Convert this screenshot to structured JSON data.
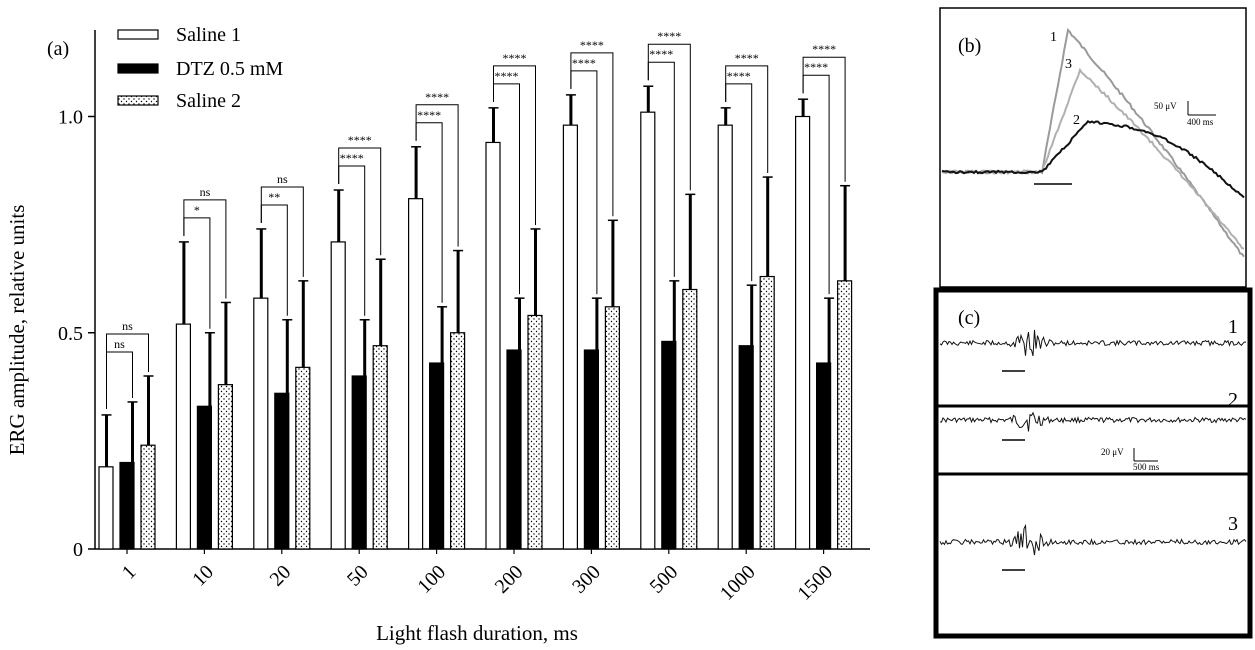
{
  "panel_labels": {
    "a": "(a)",
    "b": "(b)",
    "c": "(c)"
  },
  "chart_data": {
    "type": "bar",
    "xlabel": "Light flash duration, ms",
    "ylabel": "ERG amplitude, relative units",
    "ylim": [
      0,
      1.2
    ],
    "yticks": [
      {
        "v": 0,
        "label": "0"
      },
      {
        "v": 0.5,
        "label": "0.5"
      },
      {
        "v": 1.0,
        "label": "1.0"
      }
    ],
    "categories": [
      "1",
      "10",
      "20",
      "50",
      "100",
      "200",
      "300",
      "500",
      "1000",
      "1500"
    ],
    "series": [
      {
        "name": "Saline 1",
        "fill": "white",
        "values": [
          0.19,
          0.52,
          0.58,
          0.71,
          0.81,
          0.94,
          0.98,
          1.01,
          0.98,
          1.0
        ],
        "errors": [
          0.12,
          0.19,
          0.16,
          0.12,
          0.12,
          0.08,
          0.07,
          0.06,
          0.04,
          0.04
        ]
      },
      {
        "name": "DTZ 0.5 mM",
        "fill": "black",
        "values": [
          0.2,
          0.33,
          0.36,
          0.4,
          0.43,
          0.46,
          0.46,
          0.48,
          0.47,
          0.43
        ],
        "errors": [
          0.14,
          0.17,
          0.17,
          0.13,
          0.13,
          0.12,
          0.12,
          0.14,
          0.14,
          0.15
        ]
      },
      {
        "name": "Saline 2",
        "fill": "dotted",
        "values": [
          0.24,
          0.38,
          0.42,
          0.47,
          0.5,
          0.54,
          0.56,
          0.6,
          0.63,
          0.62
        ],
        "errors": [
          0.16,
          0.19,
          0.2,
          0.2,
          0.19,
          0.2,
          0.2,
          0.22,
          0.23,
          0.22
        ]
      }
    ],
    "significance": [
      {
        "short": "ns",
        "long": "ns"
      },
      {
        "short": "*",
        "long": "ns"
      },
      {
        "short": "**",
        "long": "ns"
      },
      {
        "short": "****",
        "long": "****"
      },
      {
        "short": "****",
        "long": "****"
      },
      {
        "short": "****",
        "long": "****"
      },
      {
        "short": "****",
        "long": "****"
      },
      {
        "short": "****",
        "long": "****"
      },
      {
        "short": "****",
        "long": "****"
      },
      {
        "short": "****",
        "long": "****"
      }
    ]
  },
  "panel_b": {
    "trace_numbers": [
      "1",
      "3",
      "2"
    ],
    "scale_y": "50 μV",
    "scale_x": "400 ms",
    "trace_colors": [
      "#9a9a9a",
      "#b0b0b0",
      "#111111"
    ]
  },
  "panel_c": {
    "trace_numbers": [
      "1",
      "2",
      "3"
    ],
    "scale_y": "20 μV",
    "scale_x": "500 ms"
  }
}
